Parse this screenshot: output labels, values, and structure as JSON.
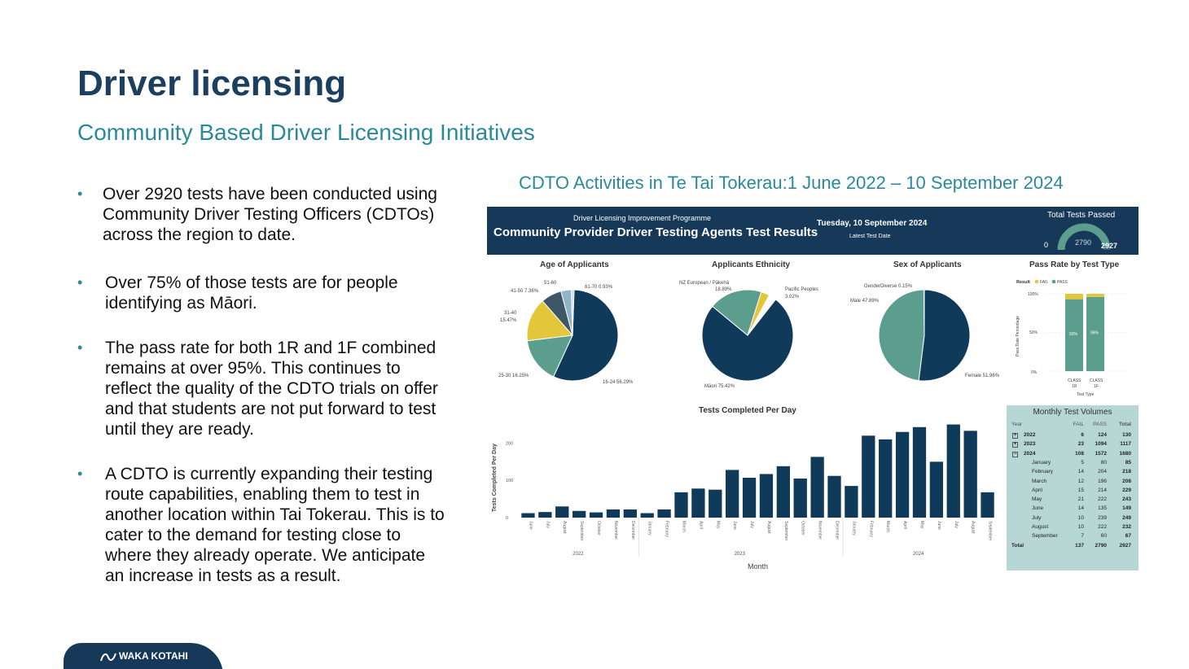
{
  "slide": {
    "title": "Driver licensing",
    "subtitle": "Community Based Driver Licensing Initiatives"
  },
  "bullets": [
    "Over 2920 tests have been conducted using Community Driver Testing Officers (CDTOs) across the region to date.",
    "Over 75% of those tests are for people identifying as Māori.",
    "The pass rate for both 1R and 1F combined remains at over 95%. This continues to reflect the quality of the CDTO trials on offer and that students are not put forward to test until they are ready.",
    "A CDTO is currently expanding their testing route capabilities, enabling them to test in another location within Tai Tokerau. This is to cater to the demand for testing close to where they already operate. We anticipate an increase in tests as a result."
  ],
  "chart_heading": "CDTO Activities in Te Tai Tokerau:1 June 2022 – 10 September 2024",
  "dashboard": {
    "programme": "Driver Licensing Improvement Programme",
    "title": "Community Provider Driver Testing Agents Test Results",
    "date": "Tuesday, 10 September 2024",
    "date_label": "Latest Test Date",
    "total_label": "Total Tests Passed",
    "gauge_min": "0",
    "gauge_value": "2790",
    "gauge_max": "2927",
    "gauge_fraction": 0.953
  },
  "colors": {
    "navy": "#0f3a5a",
    "teal": "#5b9e8d",
    "yellow": "#e3c63a",
    "slate": "#3e5766",
    "header": "#16395a",
    "accent": "#2a8a99"
  },
  "chart_data": [
    {
      "type": "pie",
      "title": "Age of Applicants",
      "slices": [
        {
          "label": "16-24 56.29%",
          "value": 56.29
        },
        {
          "label": "25-30 16.25%",
          "value": 16.25
        },
        {
          "label": "31-40 15.47%",
          "value": 15.47
        },
        {
          "label": "41-50 7.36%",
          "value": 7.36
        },
        {
          "label": "51-60 3.68%",
          "value": 3.68
        },
        {
          "label": "61-70 0.93%",
          "value": 0.93
        }
      ]
    },
    {
      "type": "pie",
      "title": "Applicants Ethnicity",
      "slices": [
        {
          "label": "Māori 75.42%",
          "value": 75.42
        },
        {
          "label": "NZ European / Pākehā 18.89%",
          "value": 18.89
        },
        {
          "label": "Pacific Peoples 3.02%",
          "value": 3.02
        },
        {
          "label": "",
          "value": 2.67
        }
      ]
    },
    {
      "type": "pie",
      "title": "Sex of Applicants",
      "slices": [
        {
          "label": "Female 51.96%",
          "value": 51.96
        },
        {
          "label": "Male 47.89%",
          "value": 47.89
        },
        {
          "label": "GenderDiverse 0.15%",
          "value": 0.15
        }
      ]
    },
    {
      "type": "bar",
      "title": "Pass Rate by Test Type",
      "legend_title": "Result",
      "series": [
        {
          "name": "FAIL",
          "values": [
            7,
            4
          ]
        },
        {
          "name": "PASS",
          "values": [
            93,
            96
          ]
        }
      ],
      "categories": [
        "CLASS 1R",
        "CLASS 1F"
      ],
      "data_labels": [
        "93%",
        "96%"
      ],
      "xlabel": "Test Type",
      "ylabel": "Pass Rate Percentage",
      "yticks": [
        "100%",
        "50%",
        "0%"
      ],
      "ylim": [
        0,
        100
      ]
    },
    {
      "type": "bar",
      "title": "Tests Completed Per Day",
      "xlabel": "Month",
      "ylabel": "Tests Completed Per Day",
      "ylim": [
        0,
        260
      ],
      "yticks": [
        0,
        100,
        200
      ],
      "categories": [
        "June",
        "July",
        "August",
        "September",
        "October",
        "November",
        "December",
        "January",
        "February",
        "March",
        "April",
        "May",
        "June",
        "July",
        "August",
        "September",
        "October",
        "November",
        "December",
        "January",
        "February",
        "March",
        "April",
        "May",
        "June",
        "July",
        "August",
        "September"
      ],
      "values": [
        12,
        15,
        30,
        18,
        14,
        22,
        22,
        12,
        22,
        68,
        78,
        75,
        128,
        107,
        117,
        138,
        105,
        163,
        112,
        85,
        220,
        210,
        230,
        243,
        150,
        250,
        233,
        68
      ],
      "year_groups": [
        {
          "label": "2022",
          "start": 0,
          "end": 6
        },
        {
          "label": "2023",
          "start": 7,
          "end": 18
        },
        {
          "label": "2024",
          "start": 19,
          "end": 27
        }
      ]
    },
    {
      "type": "table",
      "title": "Monthly Test Volumes",
      "columns": [
        "Year",
        "FAIL",
        "PASS",
        "Total"
      ],
      "rows": [
        {
          "year": "2022",
          "fail": "6",
          "pass": "124",
          "total": "130",
          "kind": "year",
          "exp": "+"
        },
        {
          "year": "2023",
          "fail": "23",
          "pass": "1094",
          "total": "1117",
          "kind": "year",
          "exp": "+"
        },
        {
          "year": "2024",
          "fail": "108",
          "pass": "1572",
          "total": "1680",
          "kind": "year",
          "exp": "−"
        },
        {
          "year": "January",
          "fail": "5",
          "pass": "80",
          "total": "85",
          "kind": "month"
        },
        {
          "year": "February",
          "fail": "14",
          "pass": "204",
          "total": "218",
          "kind": "month"
        },
        {
          "year": "March",
          "fail": "12",
          "pass": "196",
          "total": "208",
          "kind": "month"
        },
        {
          "year": "April",
          "fail": "15",
          "pass": "214",
          "total": "229",
          "kind": "month"
        },
        {
          "year": "May",
          "fail": "21",
          "pass": "222",
          "total": "243",
          "kind": "month"
        },
        {
          "year": "June",
          "fail": "14",
          "pass": "135",
          "total": "149",
          "kind": "month"
        },
        {
          "year": "July",
          "fail": "10",
          "pass": "239",
          "total": "249",
          "kind": "month"
        },
        {
          "year": "August",
          "fail": "10",
          "pass": "222",
          "total": "232",
          "kind": "month"
        },
        {
          "year": "September",
          "fail": "7",
          "pass": "60",
          "total": "67",
          "kind": "month"
        },
        {
          "year": "Total",
          "fail": "137",
          "pass": "2790",
          "total": "2927",
          "kind": "total"
        }
      ]
    }
  ],
  "footer": {
    "logo_text": "WAKA KOTAHI"
  }
}
